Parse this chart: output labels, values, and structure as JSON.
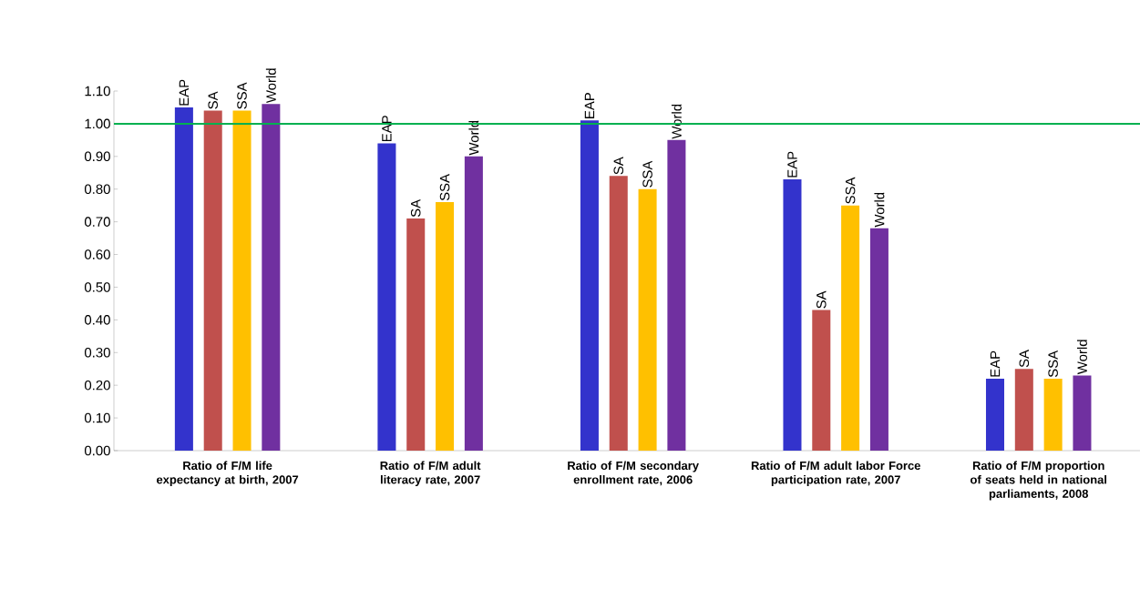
{
  "chart_data": {
    "type": "bar",
    "categories": [
      "Ratio of F/M life expectancy at birth, 2007",
      "Ratio of F/M adult literacy rate, 2007",
      "Ratio of F/M secondary enrollment rate, 2006",
      "Ratio of F/M adult labor Force participation rate, 2007",
      "Ratio of F/M proportion of seats held in national parliaments, 2008"
    ],
    "series": [
      {
        "name": "EAP",
        "color": "#3333cc",
        "values": [
          1.05,
          0.94,
          1.01,
          0.83,
          0.22
        ]
      },
      {
        "name": "SA",
        "color": "#c0504d",
        "values": [
          1.04,
          0.71,
          0.84,
          0.43,
          0.25
        ]
      },
      {
        "name": "SSA",
        "color": "#ffc000",
        "values": [
          1.04,
          0.76,
          0.8,
          0.75,
          0.22
        ]
      },
      {
        "name": "World",
        "color": "#7030a0",
        "values": [
          1.06,
          0.9,
          0.95,
          0.68,
          0.23
        ]
      }
    ],
    "ylim": [
      0,
      1.1
    ],
    "yticks": [
      {
        "value": 0,
        "label": "0.00"
      },
      {
        "value": 0.1,
        "label": "0.10"
      },
      {
        "value": 0.2,
        "label": "0.20"
      },
      {
        "value": 0.3,
        "label": "0.30"
      },
      {
        "value": 0.4,
        "label": "0.40"
      },
      {
        "value": 0.5,
        "label": "0.50"
      },
      {
        "value": 0.6,
        "label": "0.60"
      },
      {
        "value": 0.7,
        "label": "0.70"
      },
      {
        "value": 0.8,
        "label": "0.80"
      },
      {
        "value": 0.9,
        "label": "0.90"
      },
      {
        "value": 1.0,
        "label": "1.00"
      },
      {
        "value": 1.1,
        "label": "1.10"
      }
    ],
    "ref_lines": [
      {
        "axis": "y",
        "value": 1.0,
        "color": "#00b050"
      }
    ],
    "grid": false
  }
}
